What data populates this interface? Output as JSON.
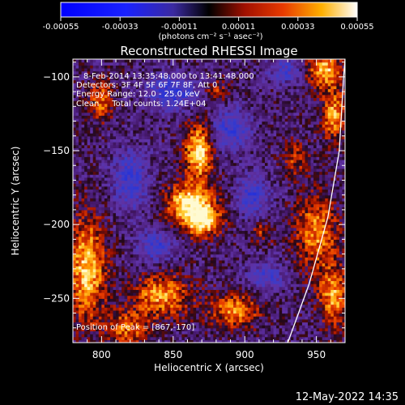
{
  "colorbar": {
    "ticks": [
      "-0.00055",
      "-0.00033",
      "-0.00011",
      "0.00011",
      "0.00033",
      "0.00055"
    ],
    "range": [
      -0.00055,
      0.00055
    ],
    "unit_label": "(photons cm⁻² s⁻¹ asec⁻²)"
  },
  "chart_data": {
    "type": "heatmap",
    "title": "Reconstructed RHESSI Image",
    "xlabel": "Heliocentric X (arcsec)",
    "ylabel": "Heliocentric Y (arcsec)",
    "xlim": [
      780,
      970
    ],
    "ylim": [
      -280,
      -88
    ],
    "xticks": [
      800,
      850,
      900,
      950
    ],
    "yticks": [
      -100,
      -150,
      -200,
      -250
    ],
    "annotations": [
      "8-Feb-2014 13:35:48.000 to 13:41:48.000",
      "Detectors: 3F 4F 5F 6F 7F 8F, Att 0",
      "Energy Range: 12.0 - 25.0 keV",
      "Clean     Total counts: 1.24E+04"
    ],
    "peak_label": "Position of Peak = [867,-170]",
    "peak": [
      867,
      -170
    ],
    "limb_arc": [
      [
        930,
        -280
      ],
      [
        945,
        -240
      ],
      [
        958,
        -195
      ],
      [
        966,
        -150
      ],
      [
        969,
        -100
      ],
      [
        970,
        -88
      ]
    ],
    "hotspots": [
      {
        "x": 868,
        "y": -150,
        "sx": 7,
        "sy": 13,
        "a": 1.0
      },
      {
        "x": 862,
        "y": -185,
        "sx": 12,
        "sy": 9,
        "a": 1.0
      },
      {
        "x": 870,
        "y": -198,
        "sx": 9,
        "sy": 7,
        "a": 0.9
      },
      {
        "x": 790,
        "y": -230,
        "sx": 9,
        "sy": 25,
        "a": 0.9
      },
      {
        "x": 800,
        "y": -115,
        "sx": 6,
        "sy": 10,
        "a": 0.6
      },
      {
        "x": 842,
        "y": -248,
        "sx": 14,
        "sy": 10,
        "a": 0.75
      },
      {
        "x": 818,
        "y": -270,
        "sx": 10,
        "sy": 8,
        "a": 0.6
      },
      {
        "x": 893,
        "y": -258,
        "sx": 12,
        "sy": 8,
        "a": 0.7
      },
      {
        "x": 955,
        "y": -95,
        "sx": 9,
        "sy": 8,
        "a": 0.85
      },
      {
        "x": 962,
        "y": -125,
        "sx": 6,
        "sy": 12,
        "a": 0.75
      },
      {
        "x": 950,
        "y": -205,
        "sx": 10,
        "sy": 18,
        "a": 0.7
      },
      {
        "x": 962,
        "y": -248,
        "sx": 7,
        "sy": 14,
        "a": 0.75
      },
      {
        "x": 935,
        "y": -155,
        "sx": 6,
        "sy": 8,
        "a": 0.45
      },
      {
        "x": 912,
        "y": -205,
        "sx": 5,
        "sy": 5,
        "a": 0.45
      },
      {
        "x": 880,
        "y": -110,
        "sx": 6,
        "sy": 6,
        "a": 0.4
      }
    ],
    "coldspots": [
      {
        "x": 850,
        "y": -110,
        "sx": 12,
        "sy": 8,
        "a": 0.7
      },
      {
        "x": 890,
        "y": -135,
        "sx": 10,
        "sy": 10,
        "a": 0.6
      },
      {
        "x": 820,
        "y": -170,
        "sx": 9,
        "sy": 14,
        "a": 0.6
      },
      {
        "x": 905,
        "y": -180,
        "sx": 8,
        "sy": 10,
        "a": 0.6
      },
      {
        "x": 838,
        "y": -215,
        "sx": 9,
        "sy": 7,
        "a": 0.6
      },
      {
        "x": 915,
        "y": -235,
        "sx": 9,
        "sy": 7,
        "a": 0.5
      },
      {
        "x": 930,
        "y": -95,
        "sx": 9,
        "sy": 6,
        "a": 0.5
      }
    ]
  },
  "footer": {
    "timestamp": "12-May-2022 14:35"
  }
}
